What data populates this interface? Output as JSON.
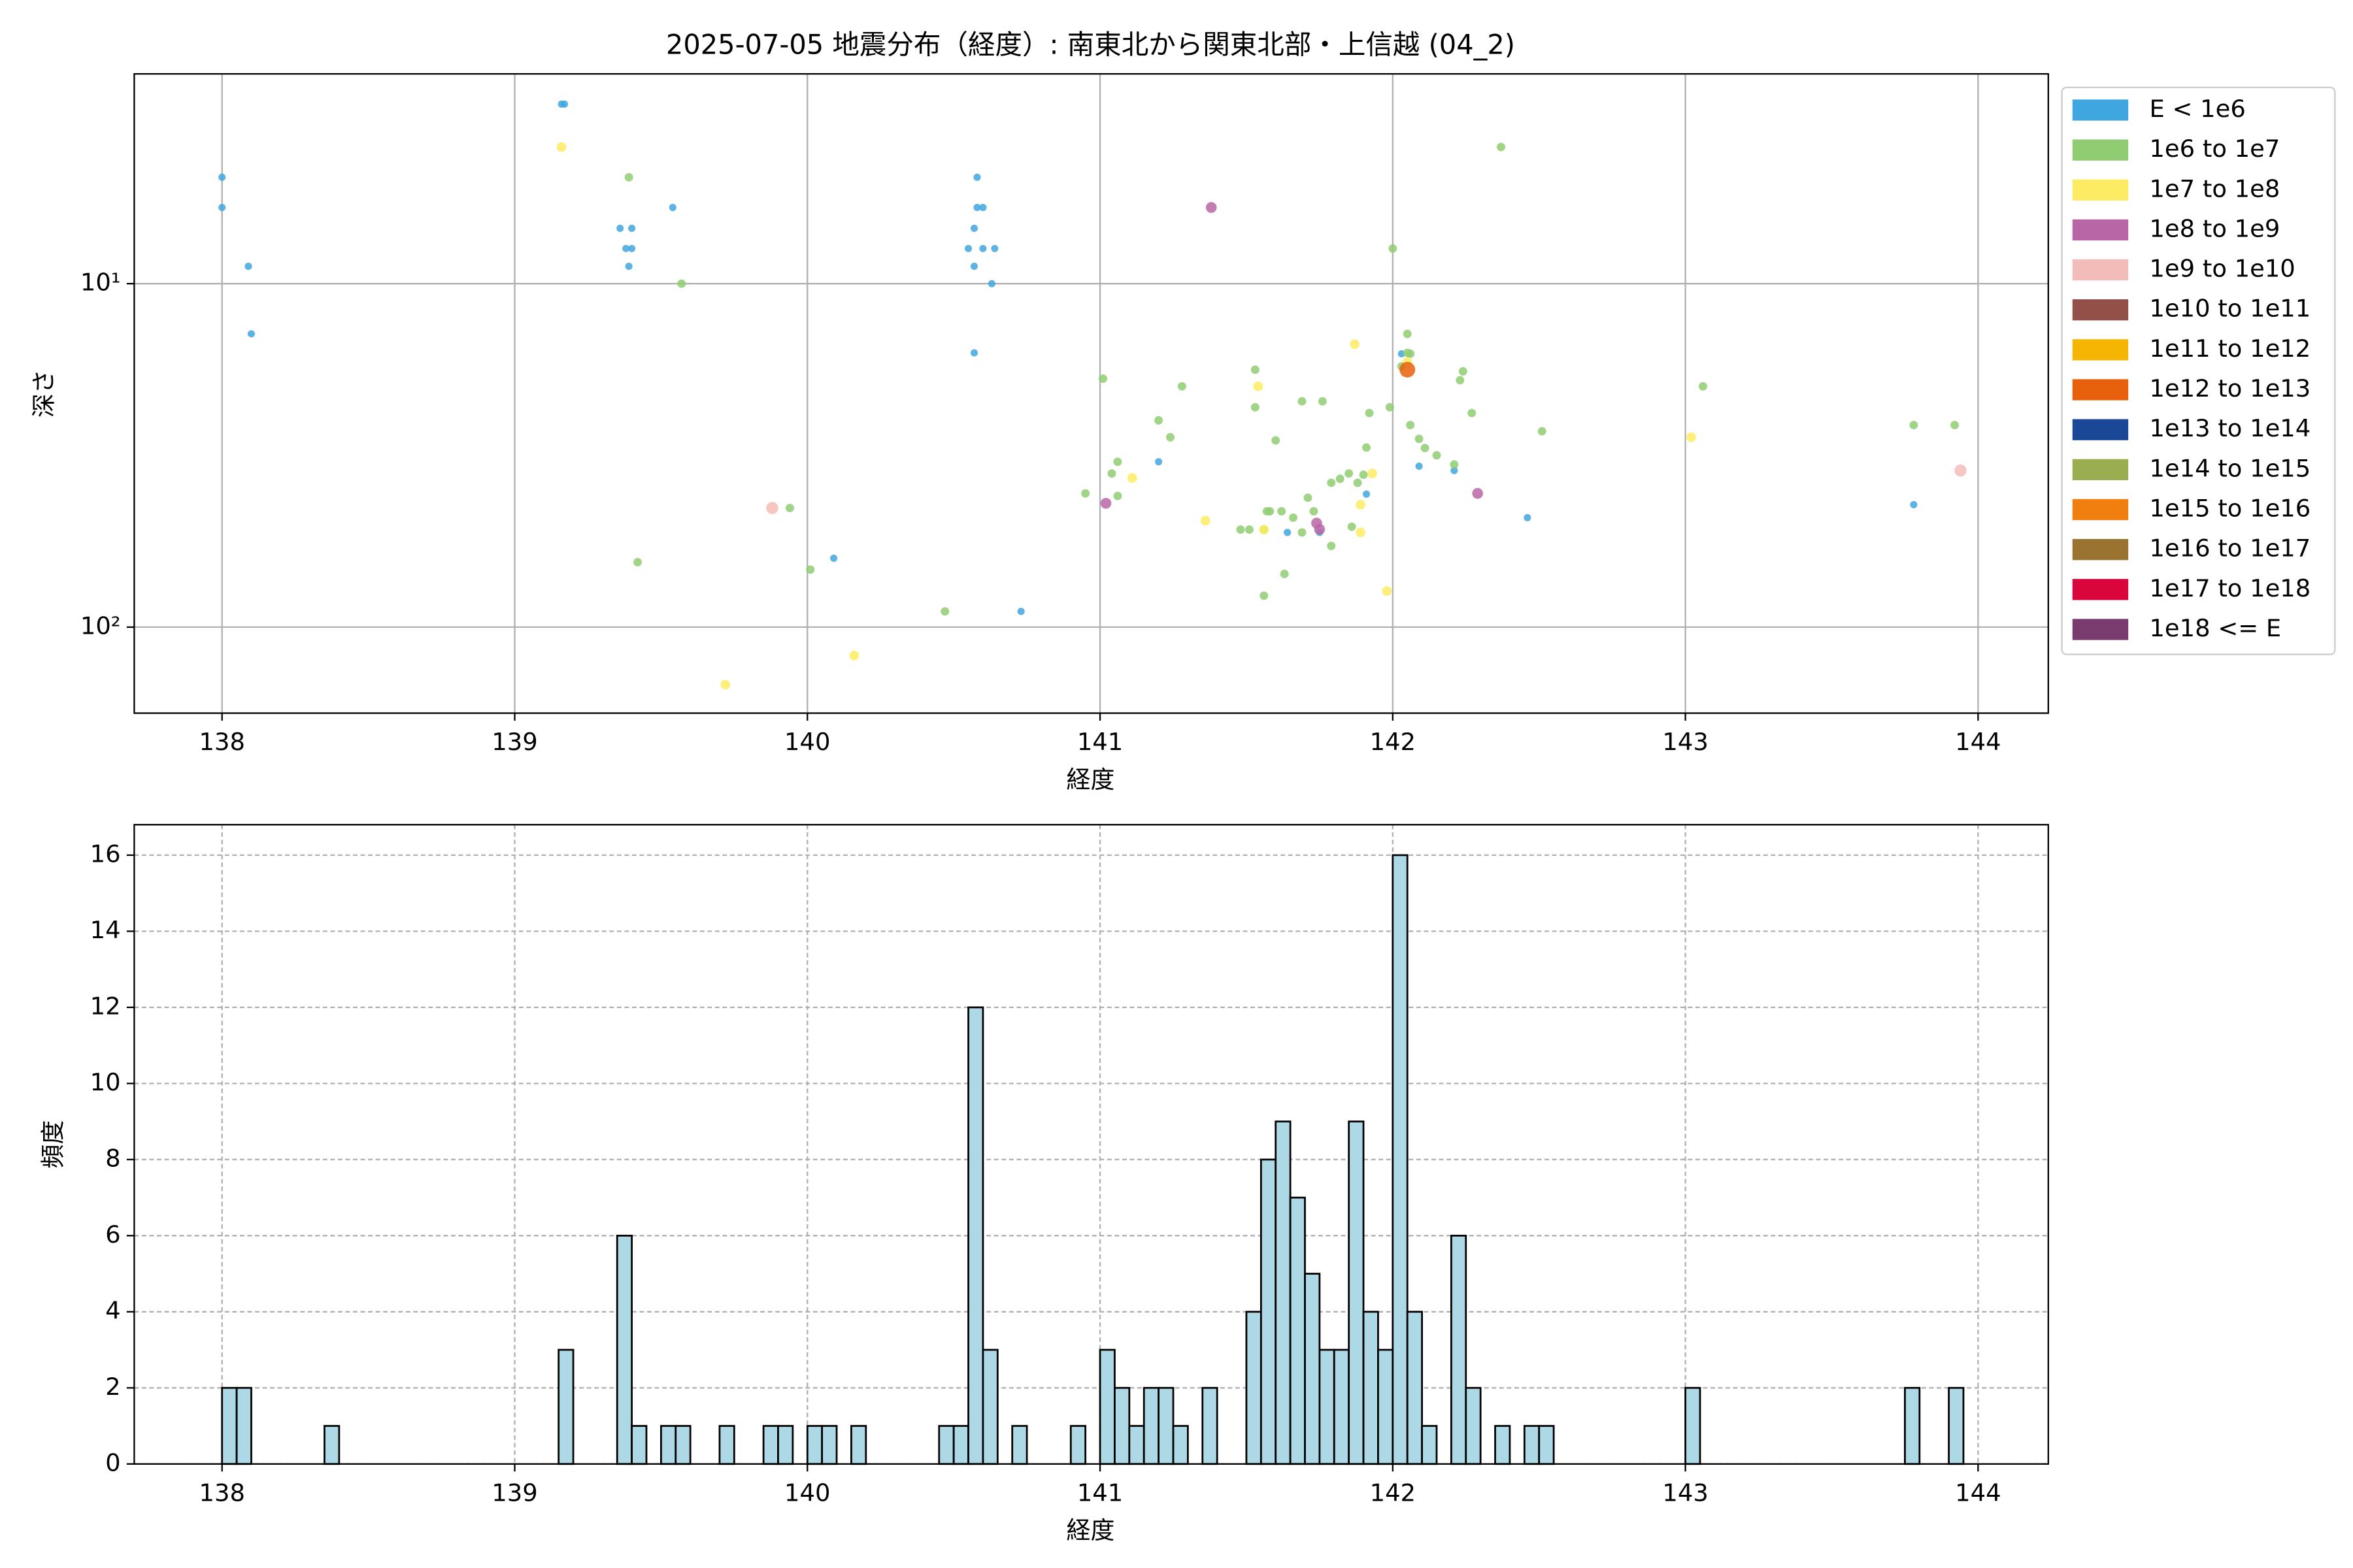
{
  "chart_data": [
    {
      "type": "scatter",
      "title": "2025-07-05 地震分布（経度）: 南東北から関東北部・上信越 (04_2)",
      "xlabel": "経度",
      "ylabel": "深さ",
      "xlim": [
        137.7,
        144.24
      ],
      "xticks": [
        138,
        139,
        140,
        141,
        142,
        143,
        144
      ],
      "ylim": [
        2.45,
        178
      ],
      "log_y": true,
      "invert_y": true,
      "yticks": [
        {
          "value": 10,
          "label": "10¹"
        },
        {
          "value": 100,
          "label": "10²"
        }
      ],
      "grid": true,
      "legend": "outside-right",
      "series": [
        {
          "name": "E < 1e6",
          "color": "#3fa6df",
          "x": [
            138.0,
            138.0,
            138.09,
            138.1,
            139.16,
            139.17,
            139.36,
            139.4,
            139.38,
            139.4,
            139.39,
            139.54,
            140.55,
            140.57,
            140.58,
            140.57,
            140.58,
            140.6,
            140.57,
            140.6,
            140.64,
            140.63,
            140.73,
            140.09,
            141.2,
            141.64,
            141.75,
            141.91,
            142.09,
            142.21,
            142.46,
            143.78,
            142.03
          ],
          "values": [
            4.9,
            6.0,
            8.9,
            14.0,
            3.0,
            3.0,
            6.9,
            6.9,
            7.9,
            7.9,
            8.9,
            6.0,
            7.9,
            6.9,
            4.9,
            8.9,
            6.0,
            6.0,
            15.9,
            7.9,
            7.9,
            10.0,
            90,
            63,
            33,
            53,
            53,
            41,
            34,
            35,
            48,
            44,
            16
          ]
        },
        {
          "name": "1e6 to 1e7",
          "color": "#8fcc72",
          "x": [
            139.39,
            139.57,
            139.42,
            139.94,
            140.01,
            140.47,
            141.01,
            141.04,
            140.95,
            141.06,
            141.06,
            141.28,
            141.2,
            141.24,
            141.56,
            141.53,
            141.53,
            141.56,
            141.58,
            141.6,
            141.62,
            141.63,
            141.66,
            141.69,
            141.71,
            141.76,
            141.79,
            141.79,
            141.86,
            141.85,
            141.88,
            141.91,
            141.92,
            141.9,
            141.99,
            142.0,
            142.03,
            142.05,
            142.05,
            142.06,
            142.06,
            142.09,
            142.11,
            142.15,
            142.21,
            142.23,
            142.24,
            142.27,
            142.37,
            142.51,
            143.06,
            143.78,
            143.92,
            141.48,
            141.51,
            141.69,
            141.57,
            141.73,
            141.82
          ],
          "values": [
            4.9,
            10.0,
            64.7,
            45,
            68,
            90,
            18.9,
            35.7,
            40.8,
            33.0,
            41.5,
            19.9,
            25,
            28,
            81,
            17.8,
            22.9,
            52,
            46,
            28.6,
            46,
            70,
            48,
            22,
            42,
            22,
            38,
            58,
            51,
            35.7,
            38,
            30,
            23.8,
            36,
            22.9,
            7.9,
            17.4,
            15.9,
            14.0,
            16,
            25.8,
            28.3,
            30.1,
            31.6,
            33.6,
            19.1,
            18,
            23.8,
            4.0,
            26.9,
            19.9,
            25.8,
            25.8,
            52,
            52,
            53,
            46,
            46,
            37
          ]
        },
        {
          "name": "1e7 to 1e8",
          "color": "#fdec63",
          "x": [
            139.16,
            139.72,
            140.16,
            141.11,
            141.36,
            141.54,
            141.56,
            141.87,
            141.89,
            141.89,
            141.93,
            141.98,
            143.02,
            142.05
          ],
          "values": [
            4.0,
            147,
            121,
            36.8,
            49,
            19.9,
            52,
            15,
            44,
            53,
            35.7,
            78.5,
            28,
            16.9
          ]
        },
        {
          "name": "1e8 to 1e9",
          "color": "#b866a6",
          "x": [
            141.38,
            141.02,
            141.74,
            141.75,
            142.29
          ],
          "values": [
            6.0,
            43.6,
            49.8,
            51.9,
            40.8
          ]
        },
        {
          "name": "1e9 to 1e10",
          "color": "#f4bcb9",
          "x": [
            139.88,
            143.94
          ],
          "values": [
            45,
            35
          ]
        },
        {
          "name": "1e10 to 1e11",
          "color": "#935049",
          "x": [],
          "values": []
        },
        {
          "name": "1e11 to 1e12",
          "color": "#f5b502",
          "x": [],
          "values": []
        },
        {
          "name": "1e12 to 1e13",
          "color": "#e8600c",
          "x": [
            142.05
          ],
          "values": [
            17.8
          ]
        },
        {
          "name": "1e13 to 1e14",
          "color": "#1b4797",
          "x": [],
          "values": []
        },
        {
          "name": "1e14 to 1e15",
          "color": "#9aad50",
          "x": [],
          "values": []
        },
        {
          "name": "1e15 to 1e16",
          "color": "#f07f10",
          "x": [],
          "values": []
        },
        {
          "name": "1e16 to 1e17",
          "color": "#9b7330",
          "x": [],
          "values": []
        },
        {
          "name": "1e17 to 1e18",
          "color": "#d9053b",
          "x": [],
          "values": []
        },
        {
          "name": "1e18 <= E",
          "color": "#7a3b6e",
          "x": [],
          "values": []
        }
      ]
    },
    {
      "type": "histogram",
      "xlabel": "経度",
      "ylabel": "頻度",
      "color": "#add8e6",
      "edgecolor": "#000000",
      "xlim": [
        137.7,
        144.24
      ],
      "xticks": [
        138,
        139,
        140,
        141,
        142,
        143,
        144
      ],
      "ylim": [
        0,
        16.8
      ],
      "yticks": [
        0,
        2,
        4,
        6,
        8,
        10,
        12,
        14,
        16
      ],
      "grid": true,
      "bins": [
        138.0,
        138.05,
        138.1,
        138.15,
        138.2,
        138.25,
        138.3,
        138.35,
        138.4,
        138.45,
        138.5,
        138.55,
        138.6,
        138.65,
        138.7,
        138.75,
        138.8,
        138.85,
        138.9,
        138.95,
        139.0,
        139.05,
        139.1,
        139.15,
        139.2,
        139.25,
        139.3,
        139.35,
        139.4,
        139.45,
        139.5,
        139.55,
        139.6,
        139.65,
        139.7,
        139.75,
        139.8,
        139.85,
        139.9,
        139.95,
        140.0,
        140.05,
        140.1,
        140.15,
        140.2,
        140.25,
        140.3,
        140.35,
        140.4,
        140.45,
        140.5,
        140.55,
        140.6,
        140.65,
        140.7,
        140.75,
        140.8,
        140.85,
        140.9,
        140.95,
        141.0,
        141.05,
        141.1,
        141.15,
        141.2,
        141.25,
        141.3,
        141.35,
        141.4,
        141.45,
        141.5,
        141.55,
        141.6,
        141.65,
        141.7,
        141.75,
        141.8,
        141.85,
        141.9,
        141.95,
        142.0,
        142.05,
        142.1,
        142.15,
        142.2,
        142.25,
        142.3,
        142.35,
        142.4,
        142.45,
        142.5,
        142.55,
        142.6,
        142.65,
        142.7,
        142.75,
        142.8,
        142.85,
        142.9,
        142.95,
        143.0,
        143.05,
        143.1,
        143.15,
        143.2,
        143.25,
        143.3,
        143.35,
        143.4,
        143.45,
        143.5,
        143.55,
        143.6,
        143.65,
        143.7,
        143.75,
        143.8,
        143.85,
        143.9,
        143.95
      ],
      "values": [
        2,
        2,
        0,
        0,
        0,
        0,
        0,
        1,
        0,
        0,
        0,
        0,
        0,
        0,
        0,
        0,
        0,
        0,
        0,
        0,
        0,
        0,
        0,
        3,
        0,
        0,
        0,
        6,
        1,
        0,
        1,
        1,
        0,
        0,
        1,
        0,
        0,
        1,
        1,
        0,
        1,
        1,
        0,
        1,
        0,
        0,
        0,
        0,
        0,
        1,
        1,
        12,
        3,
        0,
        1,
        0,
        0,
        0,
        1,
        0,
        3,
        2,
        1,
        2,
        2,
        1,
        0,
        2,
        0,
        0,
        4,
        8,
        9,
        7,
        5,
        3,
        3,
        9,
        4,
        3,
        16,
        4,
        1,
        0,
        6,
        2,
        0,
        1,
        0,
        1,
        1,
        0,
        0,
        0,
        0,
        0,
        0,
        0,
        0,
        0,
        2,
        0,
        0,
        0,
        0,
        0,
        0,
        0,
        0,
        0,
        0,
        0,
        0,
        0,
        0,
        2,
        0,
        0,
        2
      ]
    }
  ]
}
